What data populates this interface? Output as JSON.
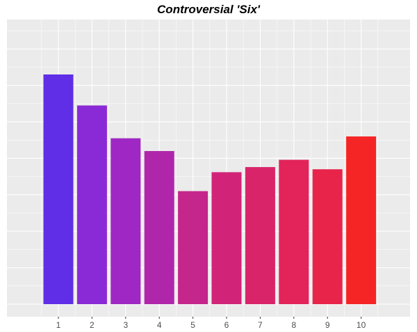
{
  "chart_data": {
    "type": "bar",
    "title": "Controversial 'Six'",
    "xlabel": "",
    "ylabel": "",
    "categories": [
      "1",
      "2",
      "3",
      "4",
      "5",
      "6",
      "7",
      "8",
      "9",
      "10"
    ],
    "values": [
      63,
      54.5,
      45.5,
      42,
      31,
      36.2,
      37.6,
      39.6,
      37,
      46
    ],
    "ylim": [
      0,
      80
    ],
    "y_ticks_visible": false,
    "grid": true,
    "legend": "none",
    "colors": [
      "#5f2ee6",
      "#8a2ad6",
      "#9f28c4",
      "#b026aa",
      "#c4268b",
      "#d12479",
      "#d9246a",
      "#e2245a",
      "#e8244b",
      "#f52525"
    ],
    "background": "#ebebeb",
    "gridline_color": "#ffffff"
  }
}
